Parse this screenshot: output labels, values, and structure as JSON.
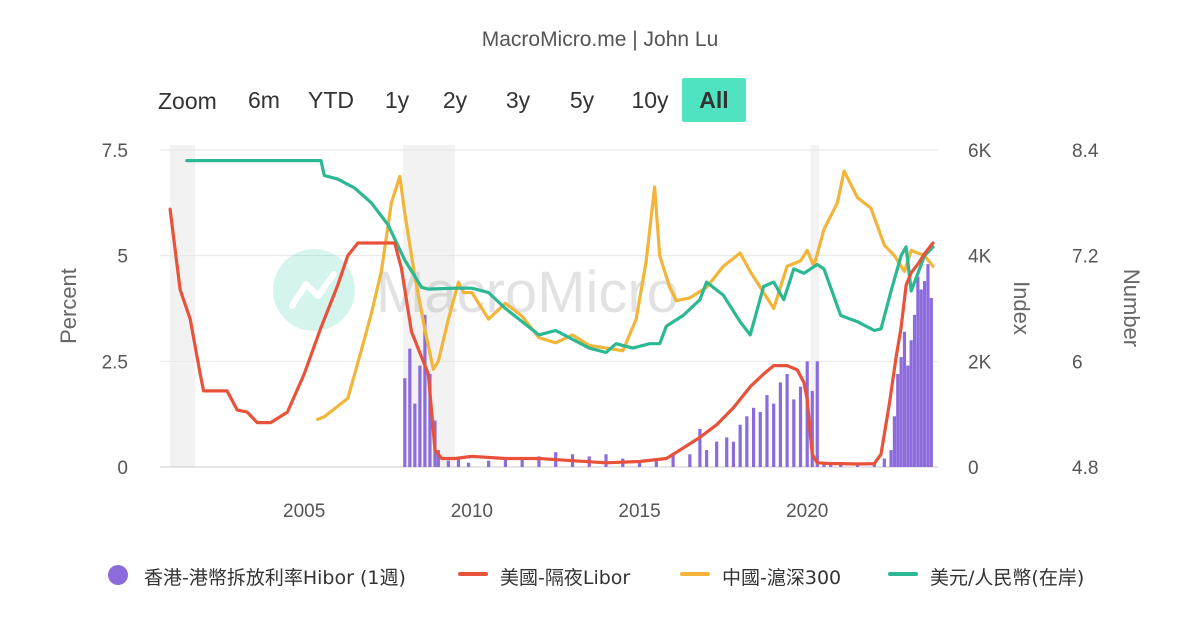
{
  "header": {
    "title": "MacroMicro.me | John Lu"
  },
  "toolbar": {
    "zoom_label": "Zoom",
    "ranges": [
      "6m",
      "YTD",
      "1y",
      "2y",
      "3y",
      "5y",
      "10y",
      "All"
    ],
    "active": "All",
    "active_color": "#50e3c2"
  },
  "watermark": {
    "text": "MacroMicro"
  },
  "chart_data": {
    "type": "line",
    "title": "MacroMicro.me | John Lu",
    "x_axis": {
      "ticks": [
        2005,
        2010,
        2015,
        2020
      ],
      "range": [
        2000.7,
        2023.9
      ]
    },
    "y_axes": {
      "percent": {
        "label": "Percent",
        "range": [
          0,
          7.5
        ],
        "ticks": [
          "0",
          "2.5",
          "5",
          "7.5"
        ]
      },
      "index": {
        "label": "Index",
        "range": [
          0,
          6000
        ],
        "ticks": [
          "0",
          "2K",
          "4K",
          "6K"
        ]
      },
      "number": {
        "label": "Number",
        "range": [
          4.8,
          8.4
        ],
        "ticks": [
          "4.8",
          "6",
          "7.2",
          "8.4"
        ]
      }
    },
    "recessions": [
      [
        2001.0,
        2001.75
      ],
      [
        2007.95,
        2009.5
      ],
      [
        2020.1,
        2020.35
      ]
    ],
    "series": [
      {
        "name": "香港-港幣拆放利率Hibor (1週)",
        "type": "bar",
        "axis": "percent",
        "color": "#8c6bdc",
        "x": [
          2008.0,
          2008.15,
          2008.3,
          2008.45,
          2008.6,
          2008.75,
          2008.9,
          2009.0,
          2009.3,
          2009.6,
          2009.9,
          2010.5,
          2011.0,
          2011.5,
          2012.0,
          2012.5,
          2013.0,
          2013.5,
          2014.0,
          2014.5,
          2015.0,
          2015.5,
          2016.0,
          2016.5,
          2016.8,
          2017.0,
          2017.3,
          2017.6,
          2017.8,
          2018.0,
          2018.2,
          2018.4,
          2018.6,
          2018.8,
          2019.0,
          2019.2,
          2019.4,
          2019.6,
          2019.8,
          2020.0,
          2020.15,
          2020.3,
          2020.5,
          2020.7,
          2021.0,
          2021.5,
          2022.0,
          2022.3,
          2022.5,
          2022.6,
          2022.7,
          2022.8,
          2022.9,
          2023.0,
          2023.1,
          2023.2,
          2023.3,
          2023.4,
          2023.5,
          2023.6,
          2023.7
        ],
        "values": [
          2.1,
          2.8,
          1.5,
          2.4,
          3.6,
          2.2,
          1.1,
          0.4,
          0.15,
          0.2,
          0.1,
          0.15,
          0.2,
          0.2,
          0.25,
          0.35,
          0.3,
          0.25,
          0.3,
          0.2,
          0.15,
          0.2,
          0.3,
          0.3,
          0.9,
          0.4,
          0.6,
          0.7,
          0.6,
          1.0,
          1.2,
          1.4,
          1.3,
          1.7,
          1.5,
          2.0,
          2.2,
          1.6,
          1.9,
          2.5,
          1.8,
          2.5,
          0.1,
          0.1,
          0.05,
          0.05,
          0.1,
          0.2,
          0.4,
          1.2,
          2.2,
          2.6,
          3.2,
          2.4,
          3.0,
          3.6,
          4.5,
          4.2,
          4.4,
          4.8,
          4.0
        ]
      },
      {
        "name": "美國-隔夜Libor",
        "type": "line",
        "axis": "percent",
        "color": "#e8523a",
        "x": [
          2001.0,
          2001.3,
          2001.6,
          2001.9,
          2002.0,
          2002.3,
          2002.7,
          2003.0,
          2003.3,
          2003.6,
          2004.0,
          2004.5,
          2005.0,
          2005.5,
          2006.0,
          2006.3,
          2006.6,
          2007.0,
          2007.5,
          2007.7,
          2007.9,
          2008.2,
          2008.5,
          2008.7,
          2008.9,
          2009.1,
          2009.5,
          2010.0,
          2011.0,
          2012.0,
          2013.0,
          2014.0,
          2015.0,
          2015.8,
          2016.2,
          2016.8,
          2017.3,
          2017.8,
          2018.3,
          2018.7,
          2019.0,
          2019.4,
          2019.7,
          2019.9,
          2020.0,
          2020.15,
          2020.3,
          2020.7,
          2021.0,
          2021.5,
          2022.0,
          2022.2,
          2022.45,
          2022.65,
          2022.8,
          2022.95,
          2023.1,
          2023.3,
          2023.5,
          2023.75
        ],
        "values": [
          6.1,
          4.2,
          3.5,
          2.2,
          1.8,
          1.8,
          1.8,
          1.35,
          1.3,
          1.05,
          1.05,
          1.3,
          2.2,
          3.3,
          4.3,
          5.0,
          5.3,
          5.3,
          5.3,
          5.3,
          4.7,
          3.2,
          2.6,
          2.2,
          0.4,
          0.2,
          0.2,
          0.25,
          0.2,
          0.2,
          0.15,
          0.1,
          0.13,
          0.2,
          0.4,
          0.7,
          1.0,
          1.4,
          1.9,
          2.2,
          2.4,
          2.4,
          2.3,
          2.0,
          1.6,
          0.3,
          0.1,
          0.08,
          0.08,
          0.07,
          0.08,
          0.3,
          1.5,
          2.6,
          3.3,
          4.3,
          4.6,
          4.8,
          5.05,
          5.3
        ]
      },
      {
        "name": "中國-滬深300",
        "type": "line",
        "axis": "index",
        "color": "#f2b53a",
        "x": [
          2005.4,
          2005.6,
          2005.9,
          2006.3,
          2006.7,
          2007.0,
          2007.3,
          2007.6,
          2007.85,
          2008.0,
          2008.3,
          2008.6,
          2008.85,
          2009.0,
          2009.3,
          2009.6,
          2009.75,
          2010.0,
          2010.5,
          2011.0,
          2011.5,
          2012.0,
          2012.5,
          2013.0,
          2013.5,
          2014.0,
          2014.5,
          2014.9,
          2015.2,
          2015.45,
          2015.6,
          2015.9,
          2016.1,
          2016.5,
          2017.0,
          2017.5,
          2018.0,
          2018.3,
          2018.8,
          2019.0,
          2019.4,
          2019.8,
          2020.0,
          2020.2,
          2020.5,
          2020.9,
          2021.1,
          2021.5,
          2021.9,
          2022.3,
          2022.6,
          2022.9,
          2023.1,
          2023.5,
          2023.75
        ],
        "values": [
          900,
          950,
          1100,
          1300,
          2200,
          2900,
          3700,
          5000,
          5500,
          4800,
          3600,
          2600,
          1850,
          2000,
          2800,
          3500,
          3300,
          3300,
          2800,
          3100,
          2850,
          2450,
          2350,
          2500,
          2300,
          2250,
          2200,
          2800,
          3900,
          5300,
          4000,
          3400,
          3150,
          3200,
          3400,
          3800,
          4050,
          3700,
          3200,
          3000,
          3800,
          3900,
          4100,
          3800,
          4500,
          5000,
          5600,
          5100,
          4900,
          4200,
          4000,
          3700,
          4100,
          4000,
          3800
        ]
      },
      {
        "name": "美元/人民幣(在岸)",
        "type": "line",
        "axis": "number",
        "color": "#2bb892",
        "x": [
          2001.5,
          2002.5,
          2003.5,
          2004.5,
          2005.5,
          2005.6,
          2006.0,
          2006.5,
          2007.0,
          2007.5,
          2008.0,
          2008.5,
          2008.7,
          2009.5,
          2010.0,
          2010.5,
          2011.0,
          2011.5,
          2012.0,
          2012.5,
          2013.0,
          2013.5,
          2014.0,
          2014.3,
          2014.8,
          2015.3,
          2015.6,
          2015.8,
          2016.3,
          2016.8,
          2017.0,
          2017.5,
          2018.0,
          2018.3,
          2018.7,
          2019.0,
          2019.3,
          2019.6,
          2019.9,
          2020.3,
          2020.5,
          2021.0,
          2021.5,
          2022.0,
          2022.2,
          2022.5,
          2022.8,
          2022.95,
          2023.1,
          2023.5,
          2023.75
        ],
        "values": [
          8.28,
          8.28,
          8.28,
          8.28,
          8.28,
          8.11,
          8.07,
          7.97,
          7.8,
          7.55,
          7.15,
          6.84,
          6.82,
          6.83,
          6.83,
          6.78,
          6.6,
          6.45,
          6.3,
          6.35,
          6.25,
          6.15,
          6.1,
          6.2,
          6.15,
          6.2,
          6.2,
          6.4,
          6.52,
          6.7,
          6.9,
          6.75,
          6.45,
          6.3,
          6.85,
          6.9,
          6.7,
          7.05,
          7.0,
          7.1,
          7.05,
          6.52,
          6.45,
          6.35,
          6.37,
          6.8,
          7.2,
          7.3,
          6.8,
          7.2,
          7.3
        ]
      }
    ]
  }
}
